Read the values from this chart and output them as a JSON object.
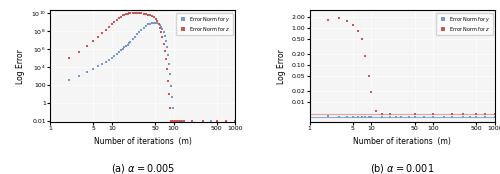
{
  "plot_a": {
    "title": "(a) $\\alpha = 0.005$",
    "xlim": [
      1,
      1000
    ],
    "ylim": [
      0.008,
      20000000000.0
    ],
    "xlabel": "Number of iterations  (m)",
    "ylabel": "Log Error",
    "legend": [
      "Error Norm for $y$",
      "Error Norm for $z$"
    ],
    "blue_x": [
      1,
      2,
      3,
      4,
      5,
      6,
      7,
      8,
      9,
      10,
      11,
      12,
      13,
      14,
      15,
      16,
      17,
      18,
      19,
      20,
      22,
      24,
      26,
      28,
      30,
      33,
      36,
      39,
      42,
      45,
      48,
      51,
      54,
      57,
      60,
      63,
      66,
      69,
      72,
      75,
      78,
      81,
      84,
      87,
      90,
      93,
      96,
      99,
      102,
      105,
      110,
      115,
      120,
      130,
      140,
      150,
      200,
      300,
      400,
      500,
      700,
      1000
    ],
    "blue_y": [
      100,
      400,
      1000,
      2500,
      6000,
      12000,
      22000,
      38000,
      65000,
      110000,
      180000,
      290000,
      450000,
      700000,
      1000000,
      1500000,
      2200000,
      3200000,
      4500000,
      6500000,
      13000000,
      25000000,
      45000000,
      80000000,
      140000000,
      240000000,
      380000000,
      550000000,
      700000000,
      800000000,
      820000000,
      800000000,
      720000000,
      600000000,
      450000000,
      300000000,
      170000000,
      80000000,
      28000000,
      8000000,
      1500000,
      200000,
      20000,
      1500,
      80,
      5,
      0.3,
      0.01,
      0.01,
      0.01,
      0.01,
      0.01,
      0.01,
      0.01,
      0.01,
      0.01,
      0.01,
      0.01,
      0.01,
      0.01,
      0.01,
      0.01
    ],
    "red_x": [
      1,
      2,
      3,
      4,
      5,
      6,
      7,
      8,
      9,
      10,
      11,
      12,
      13,
      14,
      15,
      16,
      17,
      18,
      19,
      20,
      22,
      24,
      26,
      28,
      30,
      33,
      36,
      39,
      42,
      45,
      48,
      51,
      54,
      57,
      60,
      63,
      66,
      69,
      72,
      75,
      78,
      81,
      84,
      87,
      90,
      93,
      96,
      99,
      102,
      105,
      110,
      115,
      120,
      130,
      150,
      200,
      300,
      500,
      700,
      1000
    ],
    "red_y": [
      12000,
      100000,
      500000,
      2000000,
      7000000,
      20000000.0,
      60000000.0,
      150000000.0,
      300000000.0,
      600000000.0,
      1000000000.0,
      1700000000.0,
      2700000000.0,
      4000000000.0,
      5500000000.0,
      6800000000.0,
      8000000000.0,
      8800000000.0,
      9300000000.0,
      9600000000.0,
      9800000000.0,
      9900000000.0,
      9850000000.0,
      9700000000.0,
      9400000000.0,
      8800000000.0,
      8000000000.0,
      7000000000.0,
      6000000000.0,
      4800000000.0,
      3500000000.0,
      2300000000.0,
      1300000000.0,
      600000000.0,
      250000000.0,
      80000000.0,
      20000000.0,
      4000000.0,
      600000.0,
      70000.0,
      6000,
      300,
      10,
      0.3,
      0.01,
      0.01,
      0.01,
      0.01,
      0.01,
      0.01,
      0.01,
      0.01,
      0.01,
      0.01,
      0.01,
      0.01,
      0.01,
      0.01,
      0.01,
      0.01
    ],
    "blue_color": "#7799cc",
    "red_color": "#cc5555",
    "markersize": 1.5
  },
  "plot_b": {
    "title": "(b) $\\alpha = 0.001$",
    "xlim": [
      1,
      1000
    ],
    "ylim": [
      0.003,
      3.0
    ],
    "xlabel": "Number of iterations  (m)",
    "ylabel": "Log Error",
    "legend": [
      "Error Norm for $y$",
      "Error Norm for $z$"
    ],
    "blue_x": [
      1,
      2,
      3,
      4,
      5,
      6,
      7,
      8,
      9,
      10,
      15,
      20,
      25,
      30,
      40,
      50,
      70,
      100,
      150,
      200,
      300,
      400,
      500,
      700,
      1000
    ],
    "blue_y": [
      0.004,
      0.0042,
      0.0041,
      0.004,
      0.004,
      0.004,
      0.004,
      0.004,
      0.004,
      0.004,
      0.004,
      0.004,
      0.004,
      0.004,
      0.004,
      0.004,
      0.004,
      0.004,
      0.004,
      0.004,
      0.004,
      0.004,
      0.004,
      0.004,
      0.004
    ],
    "red_x": [
      1,
      2,
      3,
      4,
      5,
      6,
      7,
      8,
      9,
      10,
      12,
      15,
      20,
      50,
      100,
      200,
      300,
      500,
      700,
      1000
    ],
    "red_y": [
      0.6,
      1.7,
      1.85,
      1.6,
      1.25,
      0.82,
      0.5,
      0.175,
      0.052,
      0.019,
      0.006,
      0.005,
      0.005,
      0.005,
      0.005,
      0.005,
      0.005,
      0.005,
      0.005,
      0.005
    ],
    "blue_color": "#7799cc",
    "red_color": "#cc5555",
    "markersize": 1.5
  },
  "yticks_a": [
    0.01,
    1,
    100,
    10000,
    1000000,
    100000000,
    10000000000
  ],
  "ytick_labels_a": [
    "0.01",
    "1",
    "100",
    "$10^4$",
    "$10^6$",
    "$10^8$",
    "$10^{10}$"
  ],
  "xticks": [
    1,
    5,
    10,
    50,
    100,
    500,
    1000
  ],
  "xtick_labels": [
    "1",
    "5",
    "10",
    "50",
    "100",
    "500",
    "1000"
  ],
  "yticks_b": [
    0.01,
    0.02,
    0.05,
    0.1,
    0.2,
    0.5,
    1.0,
    2.0
  ],
  "ytick_labels_b": [
    "0.01",
    "0.02",
    "0.05",
    "0.10",
    "0.20",
    "0.50",
    "1.00",
    "2.00"
  ]
}
